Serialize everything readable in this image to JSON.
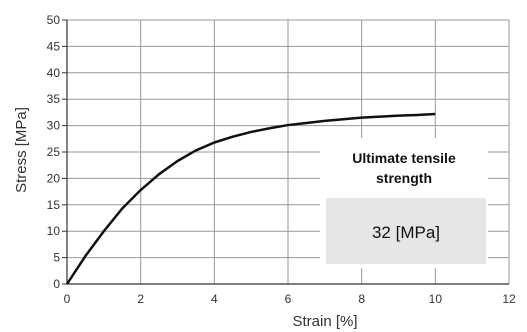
{
  "chart_data": {
    "type": "line",
    "title": "",
    "xlabel": "Strain [%]",
    "ylabel": "Stress  [MPa]",
    "xlim": [
      0,
      12
    ],
    "ylim": [
      0,
      50
    ],
    "xticks": [
      0,
      2,
      4,
      6,
      8,
      10,
      12
    ],
    "yticks": [
      0,
      5,
      10,
      15,
      20,
      25,
      30,
      35,
      40,
      45,
      50
    ],
    "grid": true,
    "series": [
      {
        "color": "#111111",
        "x": [
          0,
          0.5,
          1,
          1.5,
          2,
          2.5,
          3,
          3.5,
          4,
          4.5,
          5,
          5.5,
          6,
          6.5,
          7,
          7.5,
          8,
          8.5,
          9,
          9.5,
          10
        ],
        "y": [
          0,
          5.3,
          10.0,
          14.3,
          17.8,
          20.8,
          23.3,
          25.3,
          26.8,
          27.9,
          28.8,
          29.5,
          30.1,
          30.5,
          30.9,
          31.2,
          31.5,
          31.7,
          31.9,
          32.0,
          32.2
        ]
      }
    ],
    "annotations": [
      {
        "title": "Ultimate tensile strength",
        "value": "32 [MPa]"
      }
    ]
  },
  "colors": {
    "grid": "#9a9a9a",
    "axis": "#333333",
    "callout_box": "#e6e6e6",
    "line": "#111111"
  }
}
